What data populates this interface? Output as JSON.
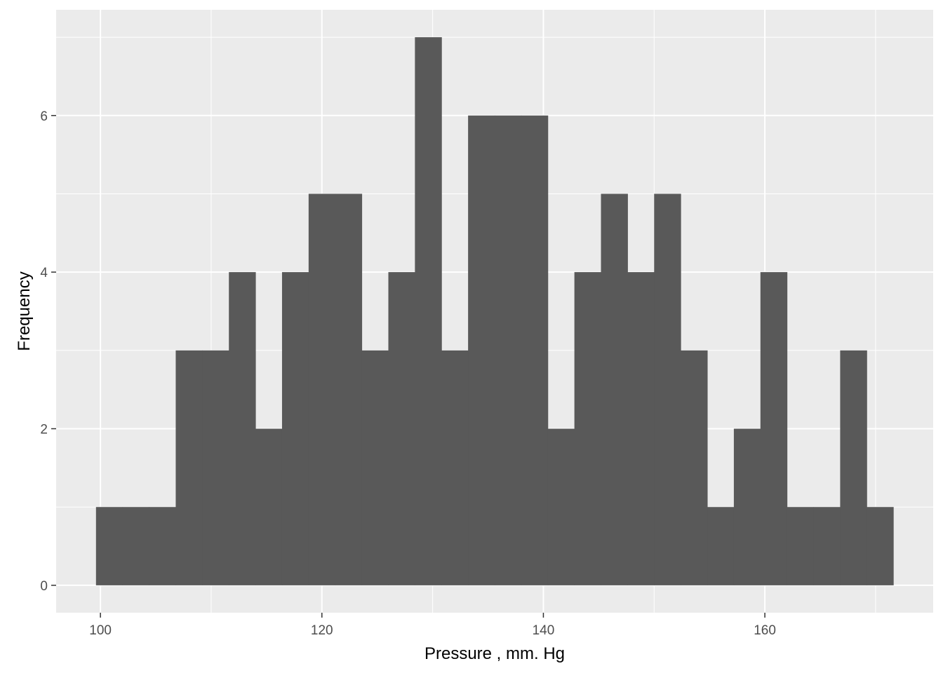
{
  "chart_data": {
    "type": "bar",
    "subtype": "histogram",
    "title": "",
    "xlabel": "Pressure , mm. Hg",
    "ylabel": "Frequency",
    "bin_width": 2.4,
    "bins": [
      {
        "x0": 99.6,
        "x1": 102.0,
        "count": 1
      },
      {
        "x0": 102.0,
        "x1": 104.4,
        "count": 1
      },
      {
        "x0": 104.4,
        "x1": 106.8,
        "count": 1
      },
      {
        "x0": 106.8,
        "x1": 109.2,
        "count": 3
      },
      {
        "x0": 109.2,
        "x1": 111.6,
        "count": 3
      },
      {
        "x0": 111.6,
        "x1": 114.0,
        "count": 4
      },
      {
        "x0": 114.0,
        "x1": 116.4,
        "count": 2
      },
      {
        "x0": 116.4,
        "x1": 118.8,
        "count": 4
      },
      {
        "x0": 118.8,
        "x1": 121.2,
        "count": 5
      },
      {
        "x0": 121.2,
        "x1": 123.6,
        "count": 5
      },
      {
        "x0": 123.6,
        "x1": 126.0,
        "count": 3
      },
      {
        "x0": 126.0,
        "x1": 128.4,
        "count": 4
      },
      {
        "x0": 128.4,
        "x1": 130.8,
        "count": 7
      },
      {
        "x0": 130.8,
        "x1": 133.2,
        "count": 3
      },
      {
        "x0": 133.2,
        "x1": 135.6,
        "count": 6
      },
      {
        "x0": 135.6,
        "x1": 138.0,
        "count": 6
      },
      {
        "x0": 138.0,
        "x1": 140.4,
        "count": 6
      },
      {
        "x0": 140.4,
        "x1": 142.8,
        "count": 2
      },
      {
        "x0": 142.8,
        "x1": 145.2,
        "count": 4
      },
      {
        "x0": 145.2,
        "x1": 147.6,
        "count": 5
      },
      {
        "x0": 147.6,
        "x1": 150.0,
        "count": 4
      },
      {
        "x0": 150.0,
        "x1": 152.4,
        "count": 5
      },
      {
        "x0": 152.4,
        "x1": 154.8,
        "count": 3
      },
      {
        "x0": 154.8,
        "x1": 157.2,
        "count": 1
      },
      {
        "x0": 157.2,
        "x1": 159.6,
        "count": 2
      },
      {
        "x0": 159.6,
        "x1": 162.0,
        "count": 4
      },
      {
        "x0": 162.0,
        "x1": 164.4,
        "count": 1
      },
      {
        "x0": 164.4,
        "x1": 166.8,
        "count": 1
      },
      {
        "x0": 166.8,
        "x1": 169.2,
        "count": 3
      },
      {
        "x0": 169.2,
        "x1": 171.6,
        "count": 1
      }
    ],
    "xlim": [
      96.0,
      175.2
    ],
    "ylim": [
      -0.35,
      7.35
    ],
    "xticks": [
      100,
      120,
      140,
      160
    ],
    "xtick_labels": [
      "100",
      "120",
      "140",
      "160"
    ],
    "yticks": [
      0,
      2,
      4,
      6
    ],
    "ytick_labels": [
      "0",
      "2",
      "4",
      "6"
    ],
    "grid": true,
    "legend": "none",
    "colors": {
      "bar": "#595959",
      "panel_background": "#ebebeb",
      "grid_line": "#ffffff",
      "tick_label": "#4d4d4d",
      "axis_title": "#000000"
    }
  }
}
